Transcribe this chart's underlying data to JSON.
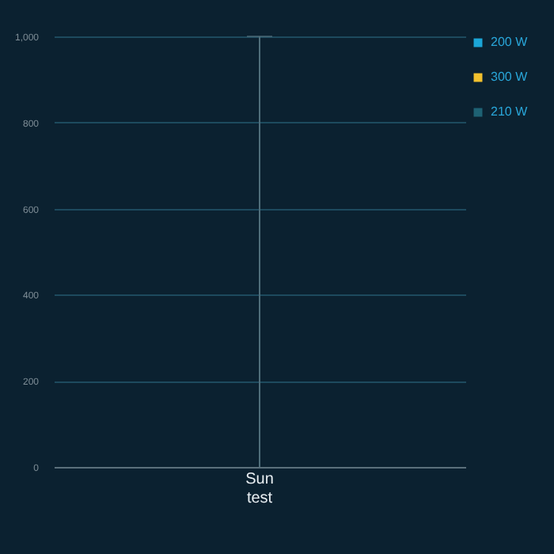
{
  "chart_data": {
    "type": "bar",
    "categories": [
      "Sun\ntest"
    ],
    "series": [
      {
        "name": "200 W",
        "color": "#1ba6d8",
        "values": [
          0
        ],
        "errors": [
          null
        ]
      },
      {
        "name": "300 W",
        "color": "#f2c12e",
        "values": [
          0
        ],
        "errors": [
          [
            0,
            1000
          ]
        ]
      },
      {
        "name": "210 W",
        "color": "#1e6274",
        "values": [
          0
        ],
        "errors": [
          null
        ]
      }
    ],
    "ylim": [
      0,
      1000
    ],
    "yticks": [
      0,
      200,
      400,
      600,
      800,
      {
        "value": 1000,
        "label": "1,000"
      }
    ],
    "grid": "y",
    "legend": "right"
  }
}
